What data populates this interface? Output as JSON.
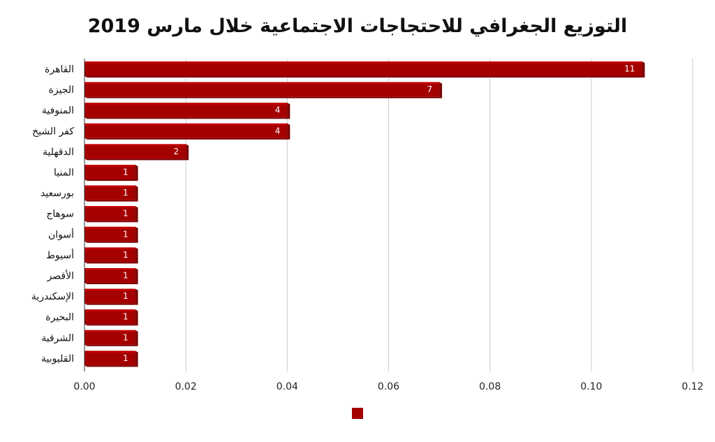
{
  "chart_data": {
    "type": "bar",
    "orientation": "horizontal",
    "title": "التوزيع الجغرافي للاحتجاجات الاجتماعية خلال مارس 2019",
    "categories": [
      "القاهرة",
      "الجيزة",
      "المنوفية",
      "كفر الشيخ",
      "الدقهلية",
      "المنيا",
      "بورسعيد",
      "سوهاج",
      "أسوان",
      "أسيوط",
      "الأقصر",
      "الإسكندرية",
      "البحيرة",
      "الشرقية",
      "القليوبية"
    ],
    "values": [
      0.11,
      0.07,
      0.04,
      0.04,
      0.02,
      0.01,
      0.01,
      0.01,
      0.01,
      0.01,
      0.01,
      0.01,
      0.01,
      0.01,
      0.01
    ],
    "data_labels": [
      "11",
      "7",
      "4",
      "4",
      "2",
      "1",
      "1",
      "1",
      "1",
      "1",
      "1",
      "1",
      "1",
      "1",
      "1"
    ],
    "xlim": [
      0,
      0.12
    ],
    "x_ticks": [
      "0.00",
      "0.02",
      "0.04",
      "0.06",
      "0.08",
      "0.10",
      "0.12"
    ],
    "xlabel": "",
    "ylabel": "",
    "grid": "vertical",
    "legend": {
      "placement": "bottom-center",
      "entries": [
        ""
      ]
    },
    "colors": {
      "bar": "#a40000",
      "bar_top": "#c00000",
      "bar_side": "#7a0000",
      "grid": "#cccccc",
      "axis": "#333333"
    }
  }
}
